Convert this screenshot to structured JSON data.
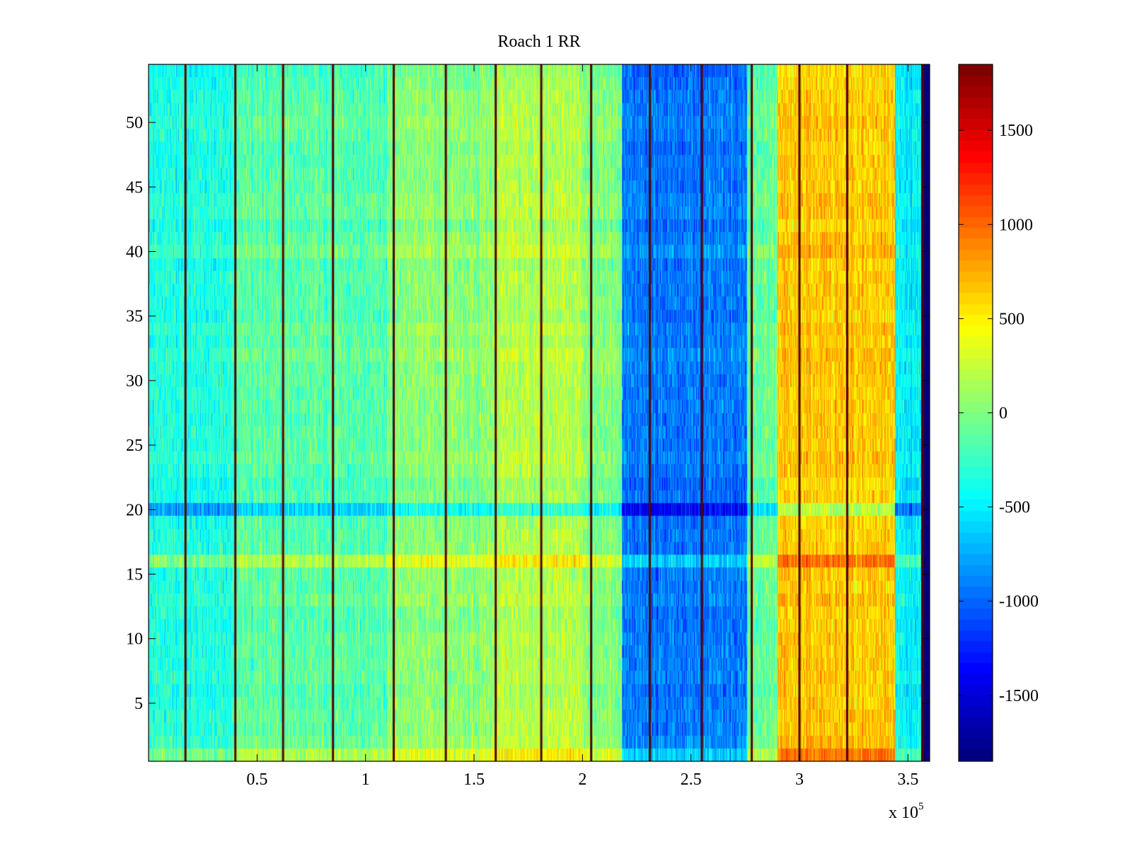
{
  "chart_data": {
    "type": "heatmap",
    "title": "Roach 1 RR",
    "xlabel": "",
    "ylabel": "",
    "x_multiplier_label": "x 10",
    "x_multiplier_exponent": "5",
    "xlim": [
      0,
      360000
    ],
    "ylim": [
      0.5,
      54.5
    ],
    "xticks": [
      0.5,
      1,
      1.5,
      2,
      2.5,
      3,
      3.5
    ],
    "xtick_labels": [
      "0.5",
      "1",
      "1.5",
      "2",
      "2.5",
      "3",
      "3.5"
    ],
    "yticks": [
      5,
      10,
      15,
      20,
      25,
      30,
      35,
      40,
      45,
      50
    ],
    "ytick_labels": [
      "5",
      "10",
      "15",
      "20",
      "25",
      "30",
      "35",
      "40",
      "45",
      "50"
    ],
    "colormap": "jet",
    "clim": [
      -1850,
      1850
    ],
    "colorbar_ticks": [
      1500,
      1000,
      500,
      0,
      -500,
      -1000,
      -1500
    ],
    "colorbar_tick_labels": [
      "1500",
      "1000",
      "500",
      "0",
      "-500",
      "-1000",
      "-1500"
    ],
    "n_rows": 54,
    "regions": [
      {
        "x_start": 0,
        "x_end": 40000,
        "level": -350
      },
      {
        "x_start": 40000,
        "x_end": 110000,
        "level": -150
      },
      {
        "x_start": 110000,
        "x_end": 160000,
        "level": 50
      },
      {
        "x_start": 160000,
        "x_end": 200000,
        "level": 180
      },
      {
        "x_start": 200000,
        "x_end": 218000,
        "level": 0
      },
      {
        "x_start": 218000,
        "x_end": 276000,
        "level": -950
      },
      {
        "x_start": 276000,
        "x_end": 290000,
        "level": -100
      },
      {
        "x_start": 290000,
        "x_end": 344000,
        "level": 650
      },
      {
        "x_start": 344000,
        "x_end": 356000,
        "level": -500
      },
      {
        "x_start": 356000,
        "x_end": 360000,
        "level": -1850
      }
    ],
    "highlight_rows": [
      {
        "row": 20,
        "offset": -450
      },
      {
        "row": 16,
        "offset": 300
      },
      {
        "row": 1,
        "offset": 300
      }
    ],
    "vertical_lines_x": [
      17000,
      40000,
      62000,
      85000,
      113000,
      137000,
      160000,
      181000,
      204000,
      231000,
      255000,
      278000,
      300000,
      322000,
      357000
    ],
    "vertical_line_value": 1850
  }
}
